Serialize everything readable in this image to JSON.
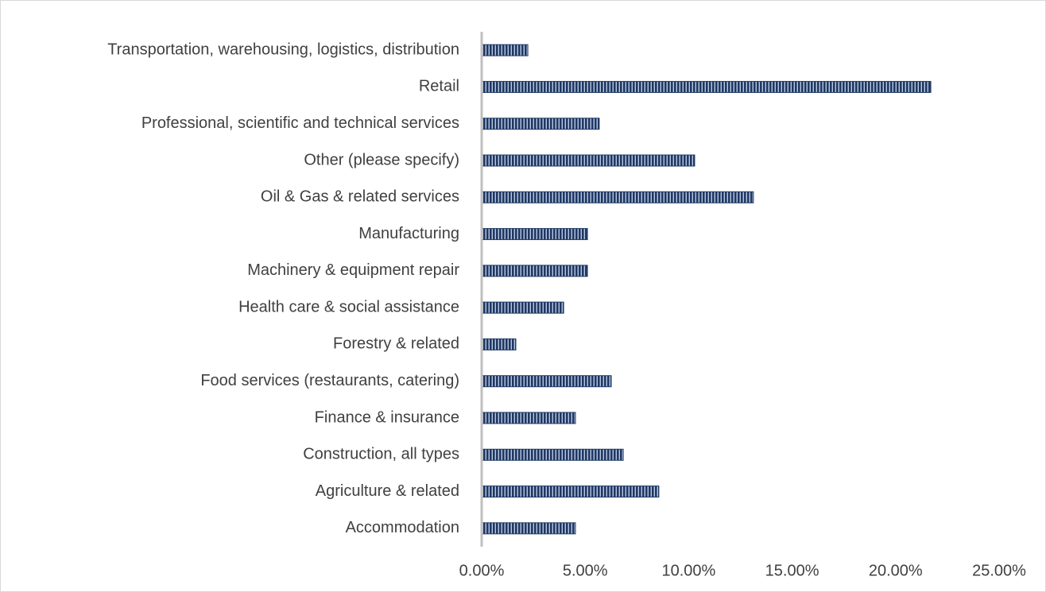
{
  "chart_data": {
    "type": "hbar",
    "categories": [
      "Accommodation",
      "Agriculture & related",
      "Construction, all types",
      "Finance & insurance",
      "Food services (restaurants, catering)",
      "Forestry & related",
      "Health care & social assistance",
      "Machinery & equipment repair",
      "Manufacturing",
      "Oil & Gas & related services",
      "Other (please specify)",
      "Professional, scientific and technical services",
      "Retail",
      "Transportation, warehousing, logistics, distribution"
    ],
    "values": [
      4.53,
      8.56,
      6.84,
      4.53,
      6.26,
      1.65,
      3.96,
      5.11,
      5.11,
      13.13,
      10.29,
      5.68,
      21.7,
      2.23
    ],
    "color": "#1f3864",
    "xlim": [
      0,
      25
    ],
    "xticks": [
      {
        "value": 0,
        "label": "0.00%"
      },
      {
        "value": 5,
        "label": "5.00%"
      },
      {
        "value": 10,
        "label": "10.00%"
      },
      {
        "value": 15,
        "label": "15.00%"
      },
      {
        "value": 20,
        "label": "20.00%"
      },
      {
        "value": 25,
        "label": "25.00%"
      }
    ],
    "grid": false
  }
}
